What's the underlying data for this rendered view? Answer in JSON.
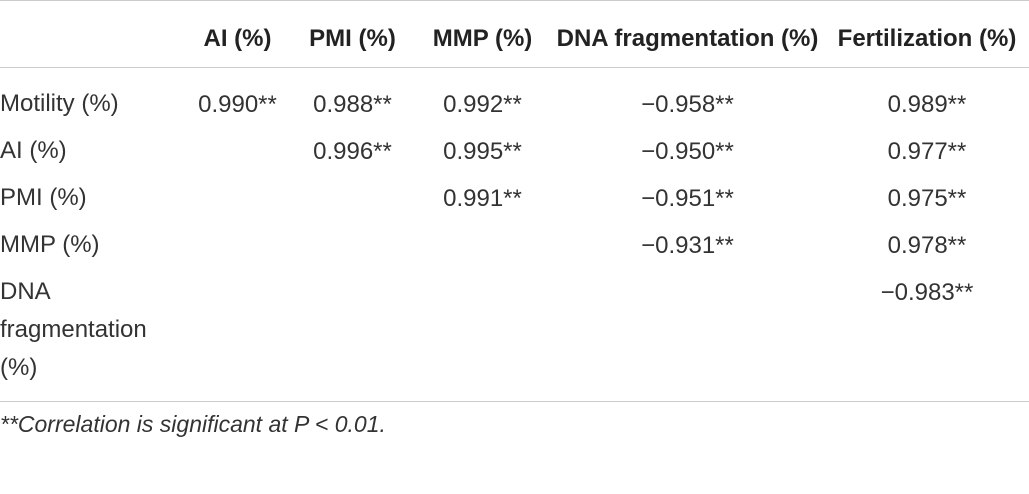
{
  "table": {
    "header": [
      "AI (%)",
      "PMI (%)",
      "MMP (%)",
      "DNA fragmentation (%)",
      "Fertilization (%)"
    ],
    "rows": [
      {
        "label": "Motility (%)",
        "cells": [
          "0.990**",
          "0.988**",
          "0.992**",
          "−0.958**",
          "0.989**"
        ]
      },
      {
        "label": "AI (%)",
        "cells": [
          null,
          "0.996**",
          "0.995**",
          "−0.950**",
          "0.977**"
        ]
      },
      {
        "label": "PMI (%)",
        "cells": [
          null,
          null,
          "0.991**",
          "−0.951**",
          "0.975**"
        ]
      },
      {
        "label": "MMP (%)",
        "cells": [
          null,
          null,
          null,
          "−0.931**",
          "0.978**"
        ]
      },
      {
        "label": "DNA fragmentation (%)",
        "cells": [
          null,
          null,
          null,
          null,
          "−0.983**"
        ]
      }
    ],
    "footnote": "**Correlation is significant at P < 0.01."
  }
}
